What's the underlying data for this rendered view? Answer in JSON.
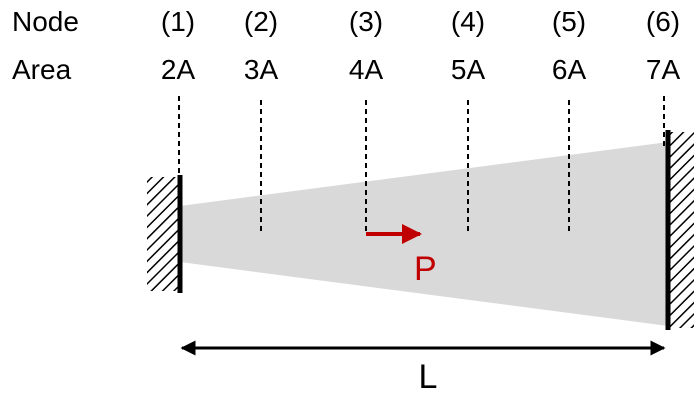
{
  "headers": {
    "node": "Node",
    "area": "Area"
  },
  "nodes": [
    {
      "label": "(1)",
      "area": "2A"
    },
    {
      "label": "(2)",
      "area": "3A"
    },
    {
      "label": "(3)",
      "area": "4A"
    },
    {
      "label": "(4)",
      "area": "5A"
    },
    {
      "label": "(5)",
      "area": "6A"
    },
    {
      "label": "(6)",
      "area": "7A"
    }
  ],
  "load": {
    "label": "P",
    "color": "#c00000"
  },
  "length": {
    "label": "L"
  },
  "colors": {
    "bar_fill": "#d9d9d9",
    "line": "#000000"
  }
}
